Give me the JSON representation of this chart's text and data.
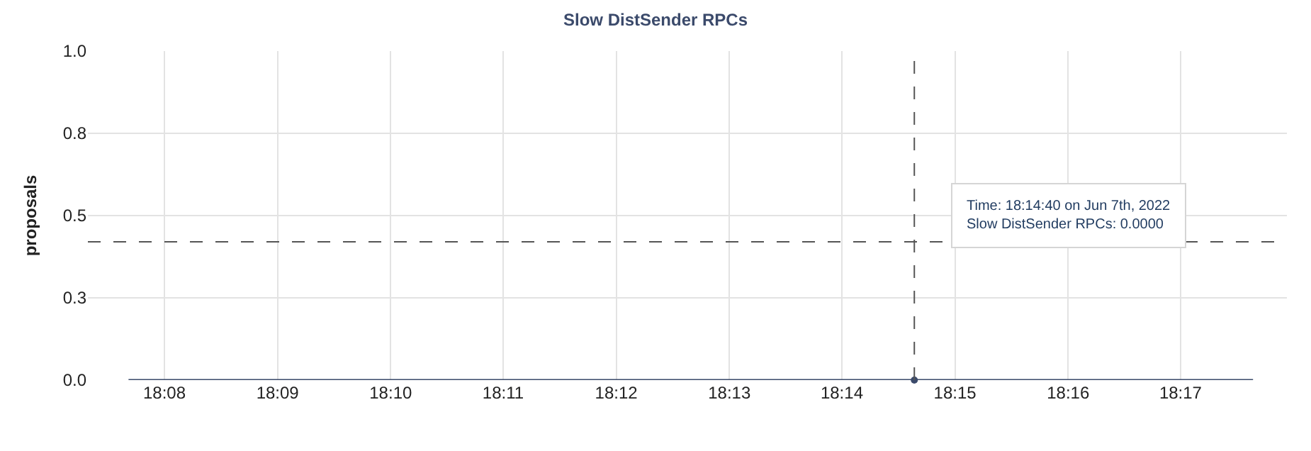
{
  "chart_data": {
    "type": "line",
    "title": "Slow DistSender RPCs",
    "ylabel": "proposals",
    "x": [
      18.128,
      18.294
    ],
    "series": [
      {
        "color": "#3b4a6b",
        "values": [
          0,
          0
        ],
        "marker": "none"
      },
      {
        "type": "scatter",
        "color": "#3b4a6b",
        "x": [
          18.244
        ],
        "values": [
          0
        ],
        "marker": "circle"
      }
    ],
    "xlim": [
      18.122,
      18.299
    ],
    "xticks": [
      {
        "value": 18.1333,
        "label": "18:08"
      },
      {
        "value": 18.15,
        "label": "18:09"
      },
      {
        "value": 18.1667,
        "label": "18:10"
      },
      {
        "value": 18.1833,
        "label": "18:11"
      },
      {
        "value": 18.2,
        "label": "18:12"
      },
      {
        "value": 18.2167,
        "label": "18:13"
      },
      {
        "value": 18.2333,
        "label": "18:14"
      },
      {
        "value": 18.25,
        "label": "18:15"
      },
      {
        "value": 18.2667,
        "label": "18:16"
      },
      {
        "value": 18.2833,
        "label": "18:17"
      }
    ],
    "ylim": [
      0,
      1
    ],
    "yticks": [
      {
        "value": 0,
        "label": "0.0"
      },
      {
        "value": 0.25,
        "label": "0.3"
      },
      {
        "value": 0.5,
        "label": "0.5"
      },
      {
        "value": 0.75,
        "label": "0.8"
      },
      {
        "value": 1,
        "label": "1.0"
      }
    ],
    "grid": true,
    "ref_lines": [
      {
        "axis": "x",
        "value": 18.244,
        "color": "#555555",
        "line_style": "dashed"
      },
      {
        "axis": "y",
        "value": 0.42,
        "color": "#555555",
        "line_style": "dashed"
      }
    ],
    "annotations": [
      "Time: 18:14:40 on Jun 7th, 2022",
      "Slow DistSender RPCs: 0.0000"
    ]
  }
}
